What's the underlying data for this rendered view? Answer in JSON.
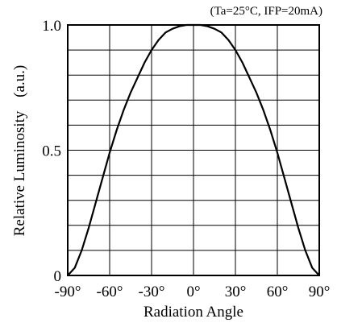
{
  "chart_data": {
    "type": "line",
    "condition": "(Ta=25°C, IFP=20mA)",
    "xlabel": "Radiation Angle",
    "ylabel": "Relative Luminosity",
    "ylabel_unit": "(a.u.)",
    "xlim": [
      -90,
      90
    ],
    "ylim": [
      0,
      1.0
    ],
    "x_ticks": [
      -90,
      -60,
      -30,
      0,
      30,
      60,
      90
    ],
    "x_tick_labels": [
      "-90°",
      "-60°",
      "-30°",
      "0°",
      "30°",
      "60°",
      "90°"
    ],
    "y_ticks": [
      0,
      0.5,
      1.0
    ],
    "y_tick_labels": [
      "0",
      "0.5",
      "1.0"
    ],
    "grid": true,
    "series": [
      {
        "x": [
          -90,
          -85,
          -80,
          -75,
          -70,
          -65,
          -60,
          -55,
          -50,
          -45,
          -40,
          -35,
          -30,
          -25,
          -20,
          -15,
          -10,
          -5,
          0,
          5,
          10,
          15,
          20,
          25,
          30,
          35,
          40,
          45,
          50,
          55,
          60,
          65,
          70,
          75,
          80,
          85,
          90
        ],
        "y": [
          0.0,
          0.03,
          0.1,
          0.19,
          0.29,
          0.39,
          0.49,
          0.58,
          0.66,
          0.73,
          0.79,
          0.85,
          0.9,
          0.94,
          0.97,
          0.985,
          0.995,
          1.0,
          1.0,
          1.0,
          0.995,
          0.985,
          0.97,
          0.94,
          0.9,
          0.85,
          0.79,
          0.73,
          0.66,
          0.58,
          0.49,
          0.39,
          0.29,
          0.19,
          0.1,
          0.03,
          0.0
        ]
      }
    ]
  }
}
